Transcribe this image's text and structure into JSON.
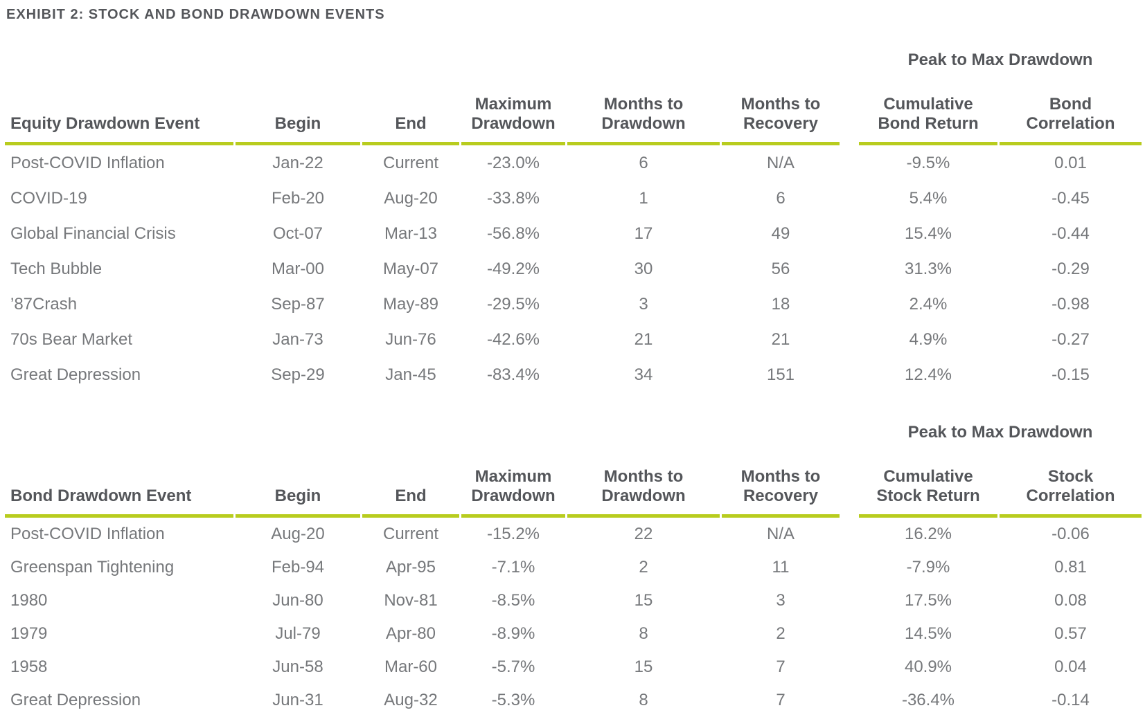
{
  "page": {
    "title": "EXHIBIT 2: STOCK AND BOND DRAWDOWN EVENTS"
  },
  "colors": {
    "accent_green": "#b8cc1e",
    "header_text": "#54565a",
    "body_text": "#76787b"
  },
  "tables": [
    {
      "group_header": "Peak to Max Drawdown",
      "columns": [
        "Equity Drawdown Event",
        "Begin",
        "End",
        "Maximum\nDrawdown",
        "Months to\nDrawdown",
        "Months to\nRecovery",
        "Cumulative\nBond Return",
        "Bond\nCorrelation"
      ],
      "rows": [
        [
          "Post-COVID Inflation",
          "Jan-22",
          "Current",
          "-23.0%",
          "6",
          "N/A",
          "-9.5%",
          "0.01"
        ],
        [
          "COVID-19",
          "Feb-20",
          "Aug-20",
          "-33.8%",
          "1",
          "6",
          "5.4%",
          "-0.45"
        ],
        [
          "Global Financial Crisis",
          "Oct-07",
          "Mar-13",
          "-56.8%",
          "17",
          "49",
          "15.4%",
          "-0.44"
        ],
        [
          "Tech Bubble",
          "Mar-00",
          "May-07",
          "-49.2%",
          "30",
          "56",
          "31.3%",
          "-0.29"
        ],
        [
          "’87Crash",
          "Sep-87",
          "May-89",
          "-29.5%",
          "3",
          "18",
          "2.4%",
          "-0.98"
        ],
        [
          "70s Bear Market",
          "Jan-73",
          "Jun-76",
          "-42.6%",
          "21",
          "21",
          "4.9%",
          "-0.27"
        ],
        [
          "Great Depression",
          "Sep-29",
          "Jan-45",
          "-83.4%",
          "34",
          "151",
          "12.4%",
          "-0.15"
        ]
      ]
    },
    {
      "group_header": "Peak to Max Drawdown",
      "columns": [
        "Bond Drawdown Event",
        "Begin",
        "End",
        "Maximum\nDrawdown",
        "Months to\nDrawdown",
        "Months to\nRecovery",
        "Cumulative\nStock Return",
        "Stock\nCorrelation"
      ],
      "rows": [
        [
          "Post-COVID Inflation",
          "Aug-20",
          "Current",
          "-15.2%",
          "22",
          "N/A",
          "16.2%",
          "-0.06"
        ],
        [
          "Greenspan Tightening",
          "Feb-94",
          "Apr-95",
          "-7.1%",
          "2",
          "11",
          "-7.9%",
          "0.81"
        ],
        [
          "1980",
          "Jun-80",
          "Nov-81",
          "-8.5%",
          "15",
          "3",
          "17.5%",
          "0.08"
        ],
        [
          "1979",
          "Jul-79",
          "Apr-80",
          "-8.9%",
          "8",
          "2",
          "14.5%",
          "0.57"
        ],
        [
          "1958",
          "Jun-58",
          "Mar-60",
          "-5.7%",
          "15",
          "7",
          "40.9%",
          "0.04"
        ],
        [
          "Great Depression",
          "Jun-31",
          "Aug-32",
          "-5.3%",
          "8",
          "7",
          "-36.4%",
          "-0.14"
        ]
      ]
    }
  ]
}
